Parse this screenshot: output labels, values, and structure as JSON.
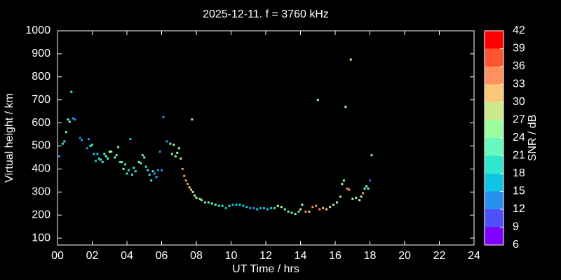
{
  "chart_data": {
    "type": "scatter",
    "title": "2025-12-11. f = 3760 kHz",
    "xlabel": "UT Time / hrs",
    "ylabel": "Virtual height / km",
    "xlim": [
      0,
      24
    ],
    "ylim": [
      70,
      1000
    ],
    "xticks": [
      {
        "value": 0,
        "label": "00"
      },
      {
        "value": 2,
        "label": "02"
      },
      {
        "value": 4,
        "label": "04"
      },
      {
        "value": 6,
        "label": "06"
      },
      {
        "value": 8,
        "label": "08"
      },
      {
        "value": 10,
        "label": "10"
      },
      {
        "value": 12,
        "label": "12"
      },
      {
        "value": 14,
        "label": "14"
      },
      {
        "value": 16,
        "label": "16"
      },
      {
        "value": 18,
        "label": "18"
      },
      {
        "value": 20,
        "label": "20"
      },
      {
        "value": 22,
        "label": "22"
      },
      {
        "value": 24,
        "label": "24"
      }
    ],
    "yticks": [
      100,
      200,
      300,
      400,
      500,
      600,
      700,
      800,
      900,
      1000
    ],
    "colorbar": {
      "label": "SNR / dB",
      "lim": [
        6,
        42
      ],
      "ticks": [
        6,
        9,
        12,
        15,
        18,
        21,
        24,
        27,
        30,
        33,
        36,
        39,
        42
      ],
      "colors": [
        "#8000ff",
        "#5050fa",
        "#2890f0",
        "#10c4e4",
        "#30e8d0",
        "#68f8c0",
        "#9cfca0",
        "#cce88c",
        "#f8c878",
        "#ff9060",
        "#ff5432",
        "#ff0000"
      ]
    },
    "x": [
      0.1,
      0.3,
      0.4,
      0.5,
      0.6,
      0.7,
      0.8,
      0.9,
      1.0,
      1.3,
      1.4,
      1.7,
      1.8,
      1.9,
      2.0,
      2.1,
      2.2,
      2.3,
      2.4,
      2.5,
      2.6,
      2.7,
      2.8,
      2.9,
      3.0,
      3.1,
      3.3,
      3.4,
      3.5,
      3.6,
      3.7,
      3.8,
      3.9,
      4.0,
      4.1,
      4.2,
      4.3,
      4.4,
      4.5,
      4.7,
      4.8,
      4.9,
      5.0,
      5.1,
      5.2,
      5.3,
      5.4,
      5.5,
      5.6,
      5.7,
      5.8,
      5.9,
      6.0,
      6.1,
      6.3,
      6.5,
      6.6,
      6.7,
      6.8,
      6.9,
      7.0,
      7.1,
      7.2,
      7.3,
      7.4,
      7.5,
      7.6,
      7.7,
      7.75,
      7.8,
      7.9,
      8.0,
      8.2,
      8.3,
      8.5,
      8.7,
      8.9,
      9.1,
      9.3,
      9.5,
      9.7,
      9.9,
      10.1,
      10.3,
      10.5,
      10.7,
      10.9,
      11.1,
      11.3,
      11.5,
      11.7,
      11.9,
      12.1,
      12.3,
      12.5,
      12.7,
      12.9,
      13.1,
      13.3,
      13.5,
      13.7,
      13.9,
      14.0,
      14.1,
      14.3,
      14.5,
      14.7,
      14.9,
      15.0,
      15.1,
      15.3,
      15.5,
      15.7,
      15.9,
      16.1,
      16.3,
      16.4,
      16.5,
      16.6,
      16.7,
      16.8,
      16.9,
      17.0,
      17.2,
      17.4,
      17.5,
      17.6,
      17.7,
      17.8,
      17.9,
      18.0,
      18.1
    ],
    "values": [
      455,
      510,
      520,
      560,
      615,
      605,
      735,
      620,
      615,
      535,
      525,
      490,
      530,
      500,
      505,
      465,
      435,
      465,
      445,
      440,
      430,
      465,
      455,
      445,
      475,
      475,
      450,
      460,
      495,
      430,
      430,
      400,
      420,
      380,
      395,
      530,
      375,
      405,
      390,
      430,
      425,
      460,
      450,
      410,
      395,
      375,
      350,
      390,
      380,
      365,
      395,
      475,
      395,
      625,
      520,
      510,
      465,
      505,
      455,
      470,
      490,
      445,
      400,
      370,
      350,
      335,
      320,
      310,
      615,
      300,
      285,
      275,
      270,
      265,
      255,
      255,
      250,
      245,
      240,
      240,
      230,
      240,
      245,
      245,
      245,
      240,
      235,
      230,
      230,
      225,
      230,
      230,
      225,
      230,
      230,
      240,
      235,
      225,
      215,
      210,
      205,
      215,
      225,
      245,
      215,
      215,
      235,
      240,
      700,
      225,
      230,
      225,
      235,
      245,
      255,
      280,
      335,
      350,
      670,
      315,
      310,
      875,
      270,
      275,
      265,
      280,
      295,
      315,
      325,
      315,
      350,
      460
    ],
    "snr": [
      12,
      18,
      18,
      21,
      21,
      21,
      18,
      12,
      12,
      12,
      12,
      12,
      12,
      18,
      18,
      15,
      15,
      15,
      18,
      18,
      18,
      21,
      21,
      21,
      24,
      24,
      21,
      21,
      21,
      18,
      21,
      21,
      18,
      18,
      18,
      15,
      18,
      18,
      18,
      21,
      21,
      21,
      21,
      18,
      18,
      18,
      18,
      18,
      12,
      15,
      12,
      12,
      12,
      12,
      12,
      21,
      21,
      24,
      24,
      24,
      24,
      27,
      33,
      33,
      33,
      33,
      30,
      30,
      30,
      27,
      27,
      24,
      24,
      24,
      21,
      21,
      21,
      21,
      18,
      18,
      15,
      18,
      15,
      15,
      15,
      15,
      15,
      12,
      12,
      15,
      15,
      15,
      15,
      15,
      18,
      24,
      24,
      21,
      21,
      21,
      21,
      21,
      27,
      24,
      33,
      30,
      33,
      33,
      24,
      33,
      30,
      30,
      27,
      24,
      24,
      24,
      24,
      24,
      24,
      33,
      33,
      27,
      24,
      24,
      24,
      24,
      33,
      21,
      21,
      21,
      9,
      24
    ]
  }
}
